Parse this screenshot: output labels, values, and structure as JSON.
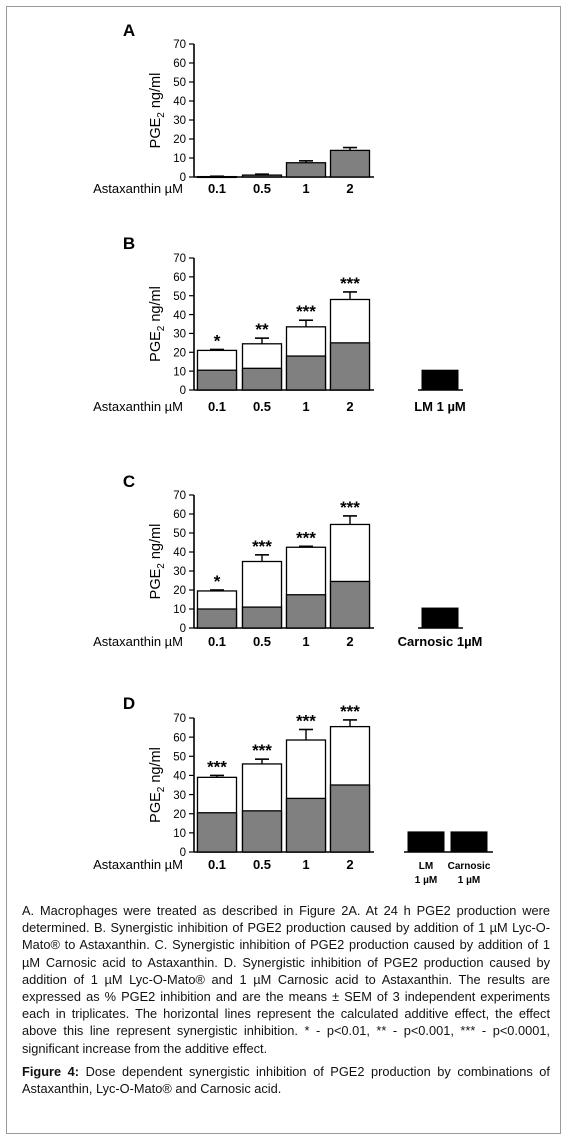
{
  "panels": [
    {
      "letter": "A",
      "ylabel": "PGE2 ng/ml",
      "ylabel_main": "PGE",
      "ylabel_sub": "2",
      "ylabel_rest": " ng/ml",
      "yticks": [
        "0",
        "10",
        "20",
        "30",
        "40",
        "50",
        "60",
        "70"
      ],
      "ylim": [
        0,
        70
      ],
      "xlabel": "Astaxanthin µM",
      "categories": [
        "0.1",
        "0.5",
        "1",
        "2"
      ],
      "extra_categories": [],
      "series": [
        {
          "name": "additive",
          "values": [
            0.2,
            1.0,
            7.5,
            14.0
          ]
        }
      ],
      "error_top": [
        0.4,
        1.5,
        8.5,
        15.5
      ],
      "significance": [
        "",
        "",
        "",
        ""
      ],
      "extra_values": []
    },
    {
      "letter": "B",
      "ylabel": "PGE2 ng/ml",
      "ylabel_main": "PGE",
      "ylabel_sub": "2",
      "ylabel_rest": " ng/ml",
      "yticks": [
        "0",
        "10",
        "20",
        "30",
        "40",
        "50",
        "60",
        "70"
      ],
      "ylim": [
        0,
        70
      ],
      "xlabel": "Astaxanthin µM",
      "categories": [
        "0.1",
        "0.5",
        "1",
        "2"
      ],
      "extra_categories": [
        "LM 1 µM"
      ],
      "series": [
        {
          "name": "additive",
          "values": [
            10.5,
            11.5,
            18.0,
            25.0
          ]
        },
        {
          "name": "total",
          "values": [
            21.0,
            24.5,
            33.5,
            48.0
          ]
        }
      ],
      "error_top": [
        21.5,
        27.5,
        37.0,
        52.0
      ],
      "significance": [
        "*",
        "**",
        "***",
        "***"
      ],
      "extra_values": [
        10.5
      ]
    },
    {
      "letter": "C",
      "ylabel": "PGE2 ng/ml",
      "ylabel_main": "PGE",
      "ylabel_sub": "2",
      "ylabel_rest": " ng/ml",
      "yticks": [
        "0",
        "10",
        "20",
        "30",
        "40",
        "50",
        "60",
        "70"
      ],
      "ylim": [
        0,
        70
      ],
      "xlabel": "Astaxanthin µM",
      "categories": [
        "0.1",
        "0.5",
        "1",
        "2"
      ],
      "extra_categories": [
        "Carnosic 1µM"
      ],
      "series": [
        {
          "name": "additive",
          "values": [
            10.0,
            11.0,
            17.5,
            24.5
          ]
        },
        {
          "name": "total",
          "values": [
            19.5,
            35.0,
            42.5,
            54.5
          ]
        }
      ],
      "error_top": [
        20.0,
        38.5,
        43.0,
        59.0
      ],
      "significance": [
        "*",
        "***",
        "***",
        "***"
      ],
      "extra_values": [
        10.5
      ]
    },
    {
      "letter": "D",
      "ylabel": "PGE2 ng/ml",
      "ylabel_main": "PGE",
      "ylabel_sub": "2",
      "ylabel_rest": " ng/ml",
      "yticks": [
        "0",
        "10",
        "20",
        "30",
        "40",
        "50",
        "60",
        "70"
      ],
      "ylim": [
        0,
        70
      ],
      "xlabel": "Astaxanthin µM",
      "categories": [
        "0.1",
        "0.5",
        "1",
        "2"
      ],
      "extra_categories": [
        "LM 1 µM",
        "Carnosic 1 µM"
      ],
      "extra_lines": [
        [
          "LM",
          "1 µM"
        ],
        [
          "Carnosic",
          "1 µM"
        ]
      ],
      "series": [
        {
          "name": "additive",
          "values": [
            20.5,
            21.5,
            28.0,
            35.0
          ]
        },
        {
          "name": "total",
          "values": [
            39.0,
            46.0,
            58.5,
            65.5
          ]
        }
      ],
      "error_top": [
        40.0,
        48.5,
        64.0,
        69.0
      ],
      "significance": [
        "***",
        "***",
        "***",
        "***"
      ],
      "extra_values": [
        10.5,
        10.5
      ]
    }
  ],
  "caption": {
    "body": "A. Macrophages were treated as described in Figure 2A. At 24 h PGE2 production were determined. B. Synergistic inhibition of PGE2 production caused by addition of 1 µM Lyc-O-Mato® to Astaxanthin. C. Synergistic inhibition of PGE2 production caused by addition of 1 µM Carnosic acid to Astaxanthin. D. Synergistic inhibition of PGE2 production caused by addition of 1 µM Lyc-O-Mato® and 1 µM Carnosic acid to Astaxanthin. The results are expressed as % PGE2 inhibition and are the means ± SEM of 3 independent experiments each in triplicates. The horizontal lines represent the calculated additive effect, the effect above this line represent synergistic inhibition. * - p<0.01, ** - p<0.001, *** - p<0.0001, significant increase from the additive effect.",
    "figure_label": "Figure 4:",
    "figure_text": "Dose dependent synergistic inhibition of PGE2 production by combinations of Astaxanthin, Lyc-O-Mato® and Carnosic acid."
  },
  "colors": {
    "additive_bar": "#808080",
    "synergy_bar": "#ffffff",
    "control_bar": "#000000"
  }
}
